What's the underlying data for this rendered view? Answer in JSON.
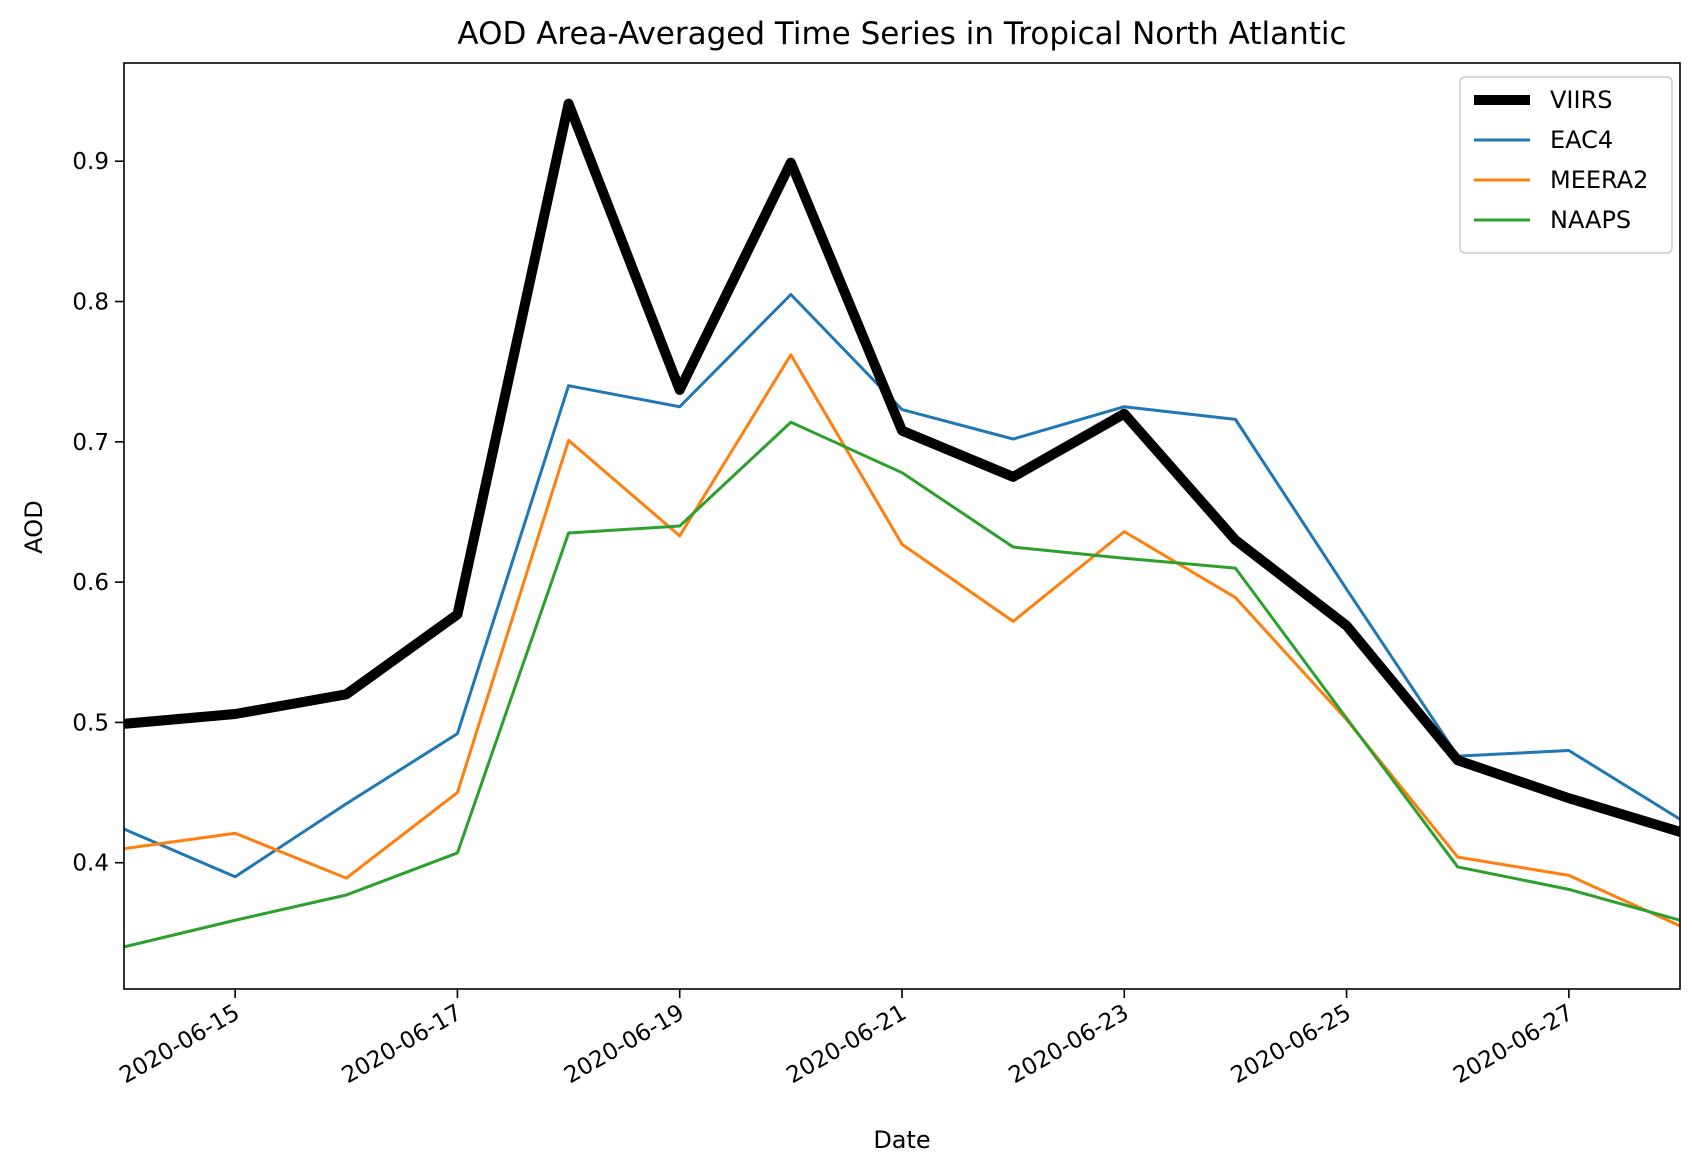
{
  "chart_data": {
    "type": "line",
    "title": "AOD Area-Averaged Time Series in Tropical North Atlantic",
    "xlabel": "Date",
    "ylabel": "AOD",
    "x": [
      "2020-06-14",
      "2020-06-15",
      "2020-06-16",
      "2020-06-17",
      "2020-06-18",
      "2020-06-19",
      "2020-06-20",
      "2020-06-21",
      "2020-06-22",
      "2020-06-23",
      "2020-06-24",
      "2020-06-25",
      "2020-06-26",
      "2020-06-27",
      "2020-06-28"
    ],
    "xlim": [
      "2020-06-14",
      "2020-06-28"
    ],
    "xticks": [
      "2020-06-15",
      "2020-06-17",
      "2020-06-19",
      "2020-06-21",
      "2020-06-23",
      "2020-06-25",
      "2020-06-27"
    ],
    "ylim": [
      0.31,
      0.97
    ],
    "yticks": [
      0.4,
      0.5,
      0.6,
      0.7,
      0.8,
      0.9
    ],
    "ytick_labels": [
      "0.4",
      "0.5",
      "0.6",
      "0.7",
      "0.8",
      "0.9"
    ],
    "grid": false,
    "legend_position": "top-right",
    "series": [
      {
        "name": "VIIRS",
        "color": "#000000",
        "emphasis": "thick",
        "values": [
          0.499,
          0.506,
          0.52,
          0.577,
          0.941,
          0.737,
          0.899,
          0.708,
          0.675,
          0.72,
          0.63,
          0.569,
          0.473,
          0.446,
          0.422
        ]
      },
      {
        "name": "EAC4",
        "color": "#1f77b4",
        "values": [
          0.424,
          0.39,
          0.442,
          0.492,
          0.74,
          0.725,
          0.805,
          0.723,
          0.702,
          0.725,
          0.716,
          0.595,
          0.476,
          0.48,
          0.431
        ]
      },
      {
        "name": "MEERA2",
        "color": "#ff7f0e",
        "values": [
          0.41,
          0.421,
          0.389,
          0.45,
          0.701,
          0.633,
          0.762,
          0.627,
          0.572,
          0.636,
          0.589,
          0.502,
          0.404,
          0.391,
          0.355
        ]
      },
      {
        "name": "NAAPS",
        "color": "#2ca02c",
        "values": [
          0.34,
          0.359,
          0.377,
          0.407,
          0.635,
          0.64,
          0.714,
          0.678,
          0.625,
          0.617,
          0.61,
          0.503,
          0.397,
          0.381,
          0.359
        ]
      }
    ]
  }
}
